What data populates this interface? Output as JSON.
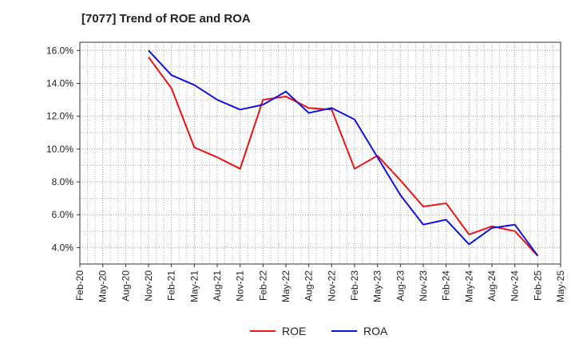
{
  "chart_data": {
    "type": "line",
    "title": "[7077]  Trend of ROE and ROA",
    "xlabel": "",
    "ylabel": "",
    "x_ticks": [
      "Feb-20",
      "May-20",
      "Aug-20",
      "Nov-20",
      "Feb-21",
      "May-21",
      "Aug-21",
      "Nov-21",
      "Feb-22",
      "May-22",
      "Aug-22",
      "Nov-22",
      "Feb-23",
      "May-23",
      "Aug-23",
      "Nov-23",
      "Feb-24",
      "May-24",
      "Aug-24",
      "Nov-24",
      "Feb-25",
      "May-25"
    ],
    "y_ticks": [
      "4.0%",
      "6.0%",
      "8.0%",
      "10.0%",
      "12.0%",
      "14.0%",
      "16.0%"
    ],
    "ylim": [
      3.0,
      16.5
    ],
    "grid": true,
    "legend_position": "bottom",
    "series": [
      {
        "name": "ROE",
        "color": "#ee1111",
        "x": [
          "Nov-20",
          "Feb-21",
          "May-21",
          "Aug-21",
          "Nov-21",
          "Feb-22",
          "May-22",
          "Aug-22",
          "Nov-22",
          "Feb-23",
          "May-23",
          "Aug-23",
          "Nov-23",
          "Feb-24",
          "May-24",
          "Aug-24",
          "Nov-24",
          "Feb-25"
        ],
        "values": [
          15.6,
          13.7,
          10.1,
          9.5,
          8.8,
          13.0,
          13.2,
          12.5,
          12.4,
          8.8,
          9.6,
          8.1,
          6.5,
          6.7,
          4.8,
          5.3,
          5.0,
          3.5
        ]
      },
      {
        "name": "ROA",
        "color": "#1111dd",
        "x": [
          "Nov-20",
          "Feb-21",
          "May-21",
          "Aug-21",
          "Nov-21",
          "Feb-22",
          "May-22",
          "Aug-22",
          "Nov-22",
          "Feb-23",
          "May-23",
          "Aug-23",
          "Nov-23",
          "Feb-24",
          "May-24",
          "Aug-24",
          "Nov-24",
          "Feb-25"
        ],
        "values": [
          16.0,
          14.5,
          13.9,
          13.0,
          12.4,
          12.7,
          13.5,
          12.2,
          12.5,
          11.8,
          9.5,
          7.2,
          5.4,
          5.7,
          4.2,
          5.2,
          5.4,
          3.5
        ]
      }
    ]
  }
}
